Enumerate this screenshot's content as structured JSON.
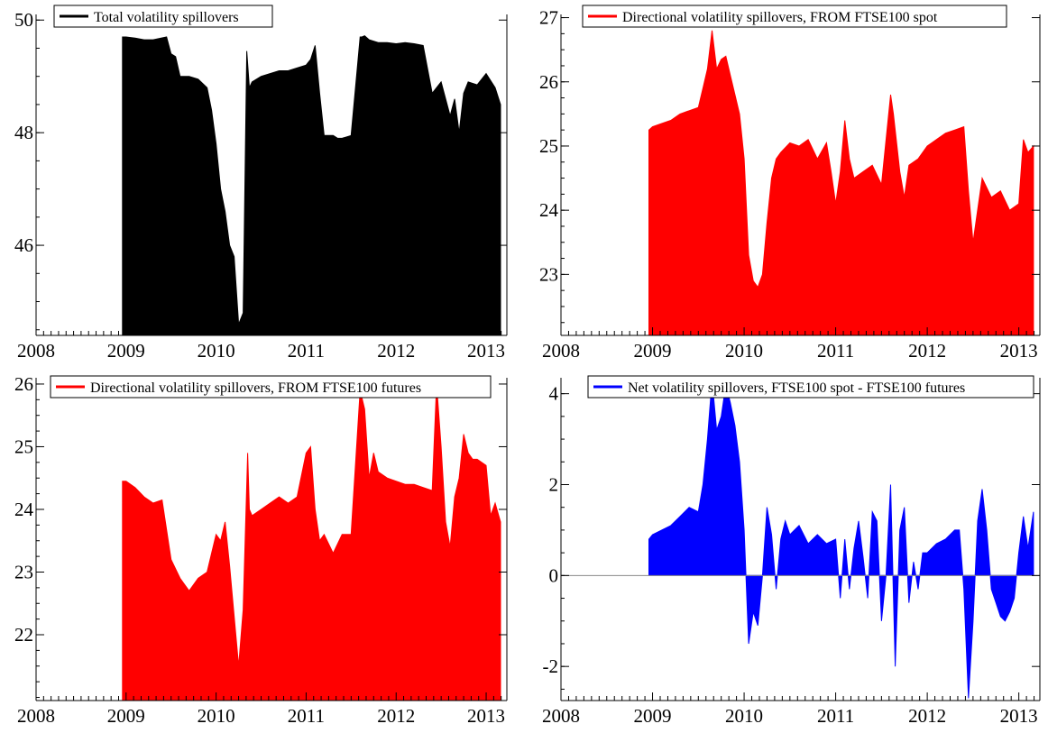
{
  "chart_data": [
    {
      "type": "area",
      "series": [
        {
          "name": "Total volatility spillovers",
          "color": "#000000",
          "x": [
            2008.96,
            2009.0,
            2009.1,
            2009.2,
            2009.3,
            2009.45,
            2009.5,
            2009.55,
            2009.6,
            2009.7,
            2009.8,
            2009.9,
            2009.95,
            2010.0,
            2010.05,
            2010.1,
            2010.15,
            2010.2,
            2010.25,
            2010.3,
            2010.34,
            2010.37,
            2010.4,
            2010.5,
            2010.6,
            2010.7,
            2010.8,
            2010.9,
            2011.0,
            2011.05,
            2011.1,
            2011.15,
            2011.2,
            2011.3,
            2011.35,
            2011.4,
            2011.5,
            2011.6,
            2011.62,
            2011.65,
            2011.7,
            2011.8,
            2011.9,
            2012.0,
            2012.1,
            2012.2,
            2012.3,
            2012.4,
            2012.5,
            2012.6,
            2012.65,
            2012.7,
            2012.75,
            2012.8,
            2012.9,
            2013.0,
            2013.1,
            2013.16
          ],
          "y": [
            49.7,
            49.7,
            49.68,
            49.65,
            49.65,
            49.7,
            49.4,
            49.35,
            49.0,
            49.0,
            48.95,
            48.8,
            48.4,
            47.8,
            47.0,
            46.6,
            46.0,
            45.8,
            44.6,
            44.8,
            49.45,
            48.8,
            48.9,
            49.0,
            49.05,
            49.1,
            49.1,
            49.15,
            49.2,
            49.3,
            49.55,
            48.7,
            47.95,
            47.95,
            47.9,
            47.9,
            47.95,
            49.7,
            49.7,
            49.72,
            49.65,
            49.6,
            49.6,
            49.58,
            49.6,
            49.58,
            49.55,
            48.7,
            48.9,
            48.3,
            48.6,
            48.0,
            48.7,
            48.9,
            48.85,
            49.05,
            48.8,
            48.5
          ]
        }
      ],
      "xlim": [
        2008.0,
        2013.23
      ],
      "ylim": [
        44.4,
        50.1
      ],
      "x_ticks": [
        2008,
        2009,
        2010,
        2011,
        2012,
        2013
      ],
      "x_tick_labels": [
        "2008",
        "2009",
        "2010",
        "2011",
        "2012",
        "2013"
      ],
      "y_ticks": [
        46,
        48,
        50
      ],
      "y_tick_labels": [
        "46",
        "48",
        "50"
      ],
      "baseline": 44.4,
      "legend": "top-left"
    },
    {
      "type": "area",
      "series": [
        {
          "name": "Directional volatility spillovers, FROM FTSE100 spot",
          "color": "#ff0000",
          "x": [
            2008.96,
            2009.0,
            2009.1,
            2009.2,
            2009.3,
            2009.4,
            2009.5,
            2009.55,
            2009.6,
            2009.65,
            2009.7,
            2009.75,
            2009.8,
            2009.85,
            2009.9,
            2009.95,
            2010.0,
            2010.05,
            2010.1,
            2010.15,
            2010.2,
            2010.25,
            2010.3,
            2010.35,
            2010.4,
            2010.5,
            2010.6,
            2010.7,
            2010.8,
            2010.9,
            2010.95,
            2011.0,
            2011.05,
            2011.1,
            2011.15,
            2011.2,
            2011.3,
            2011.4,
            2011.5,
            2011.6,
            2011.63,
            2011.7,
            2011.75,
            2011.8,
            2011.9,
            2012.0,
            2012.1,
            2012.2,
            2012.3,
            2012.4,
            2012.45,
            2012.5,
            2012.6,
            2012.7,
            2012.8,
            2012.9,
            2013.0,
            2013.05,
            2013.1,
            2013.16
          ],
          "y": [
            25.25,
            25.3,
            25.35,
            25.4,
            25.5,
            25.55,
            25.6,
            25.9,
            26.2,
            26.8,
            26.2,
            26.35,
            26.4,
            26.1,
            25.8,
            25.5,
            24.8,
            23.3,
            22.9,
            22.8,
            23.0,
            23.8,
            24.5,
            24.8,
            24.9,
            25.05,
            25.0,
            25.1,
            24.8,
            25.05,
            24.6,
            24.1,
            24.6,
            25.4,
            24.8,
            24.5,
            24.6,
            24.7,
            24.4,
            25.8,
            25.5,
            24.6,
            24.2,
            24.7,
            24.8,
            25.0,
            25.1,
            25.2,
            25.25,
            25.3,
            24.3,
            23.5,
            24.5,
            24.2,
            24.3,
            24.0,
            24.1,
            25.1,
            24.9,
            25.0
          ]
        }
      ],
      "xlim": [
        2008.0,
        2013.23
      ],
      "ylim": [
        22.05,
        27.05
      ],
      "x_ticks": [
        2008,
        2009,
        2010,
        2011,
        2012,
        2013
      ],
      "x_tick_labels": [
        "2008",
        "2009",
        "2010",
        "2011",
        "2012",
        "2013"
      ],
      "y_ticks": [
        23,
        24,
        25,
        26,
        27
      ],
      "y_tick_labels": [
        "23",
        "24",
        "25",
        "26",
        "27"
      ],
      "baseline": 22.05,
      "legend": "top-left"
    },
    {
      "type": "area",
      "series": [
        {
          "name": "Directional volatility spillovers, FROM FTSE100 futures",
          "color": "#ff0000",
          "x": [
            2008.96,
            2009.0,
            2009.1,
            2009.2,
            2009.3,
            2009.4,
            2009.5,
            2009.6,
            2009.65,
            2009.7,
            2009.8,
            2009.9,
            2009.95,
            2010.0,
            2010.05,
            2010.1,
            2010.15,
            2010.2,
            2010.25,
            2010.3,
            2010.35,
            2010.37,
            2010.4,
            2010.5,
            2010.6,
            2010.7,
            2010.8,
            2010.9,
            2011.0,
            2011.05,
            2011.1,
            2011.15,
            2011.2,
            2011.3,
            2011.4,
            2011.5,
            2011.6,
            2011.65,
            2011.7,
            2011.75,
            2011.8,
            2011.9,
            2012.0,
            2012.1,
            2012.2,
            2012.3,
            2012.4,
            2012.45,
            2012.5,
            2012.55,
            2012.6,
            2012.65,
            2012.7,
            2012.75,
            2012.8,
            2012.85,
            2012.9,
            2013.0,
            2013.05,
            2013.1,
            2013.16
          ],
          "y": [
            24.45,
            24.45,
            24.35,
            24.2,
            24.1,
            24.15,
            23.2,
            22.9,
            22.8,
            22.7,
            22.9,
            23.0,
            23.3,
            23.6,
            23.5,
            23.8,
            23.1,
            22.3,
            21.5,
            22.4,
            24.9,
            24.0,
            23.9,
            24.0,
            24.1,
            24.2,
            24.1,
            24.2,
            24.9,
            25.0,
            24.0,
            23.5,
            23.6,
            23.3,
            23.6,
            23.6,
            25.9,
            25.6,
            24.5,
            24.9,
            24.6,
            24.5,
            24.45,
            24.4,
            24.4,
            24.35,
            24.3,
            26.0,
            25.0,
            23.8,
            23.4,
            24.2,
            24.5,
            25.2,
            24.9,
            24.8,
            24.8,
            24.7,
            23.9,
            24.1,
            23.8
          ]
        }
      ],
      "xlim": [
        2008.0,
        2013.23
      ],
      "ylim": [
        20.95,
        26.1
      ],
      "x_ticks": [
        2008,
        2009,
        2010,
        2011,
        2012,
        2013
      ],
      "x_tick_labels": [
        "2008",
        "2009",
        "2010",
        "2011",
        "2012",
        "2013"
      ],
      "y_ticks": [
        22,
        23,
        24,
        25,
        26
      ],
      "y_tick_labels": [
        "22",
        "23",
        "24",
        "25",
        "26"
      ],
      "baseline": 20.95,
      "legend": "top-left"
    },
    {
      "type": "area",
      "series": [
        {
          "name": "Net volatility spillovers, FTSE100 spot - FTSE100 futures",
          "color": "#0000ff",
          "x": [
            2008.96,
            2009.0,
            2009.1,
            2009.2,
            2009.3,
            2009.4,
            2009.5,
            2009.55,
            2009.6,
            2009.65,
            2009.7,
            2009.75,
            2009.8,
            2009.85,
            2009.9,
            2009.95,
            2010.0,
            2010.05,
            2010.1,
            2010.15,
            2010.2,
            2010.25,
            2010.3,
            2010.35,
            2010.4,
            2010.45,
            2010.5,
            2010.6,
            2010.7,
            2010.8,
            2010.9,
            2011.0,
            2011.05,
            2011.1,
            2011.15,
            2011.2,
            2011.25,
            2011.3,
            2011.35,
            2011.4,
            2011.45,
            2011.5,
            2011.55,
            2011.6,
            2011.65,
            2011.7,
            2011.75,
            2011.8,
            2011.85,
            2011.9,
            2011.95,
            2012.0,
            2012.1,
            2012.2,
            2012.3,
            2012.35,
            2012.4,
            2012.45,
            2012.5,
            2012.55,
            2012.6,
            2012.65,
            2012.7,
            2012.75,
            2012.8,
            2012.85,
            2012.9,
            2012.95,
            2013.0,
            2013.05,
            2013.1,
            2013.16
          ],
          "y": [
            0.8,
            0.9,
            1.0,
            1.1,
            1.3,
            1.5,
            1.4,
            2.0,
            3.0,
            4.3,
            3.2,
            3.5,
            4.2,
            3.8,
            3.3,
            2.5,
            1.0,
            -1.5,
            -0.8,
            -1.1,
            0.0,
            1.5,
            0.9,
            -0.3,
            0.8,
            1.2,
            0.9,
            1.1,
            0.7,
            0.9,
            0.7,
            0.8,
            -0.5,
            0.8,
            -0.3,
            0.6,
            1.2,
            0.4,
            -0.5,
            1.4,
            1.2,
            -1.0,
            0.0,
            2.0,
            -2.0,
            1.0,
            1.5,
            -0.6,
            0.3,
            -0.3,
            0.5,
            0.5,
            0.7,
            0.8,
            1.0,
            1.0,
            -0.3,
            -2.7,
            -1.0,
            1.2,
            1.9,
            1.0,
            -0.3,
            -0.6,
            -0.9,
            -1.0,
            -0.8,
            -0.5,
            0.5,
            1.3,
            0.6,
            1.4
          ]
        }
      ],
      "xlim": [
        2008.0,
        2013.23
      ],
      "ylim": [
        -2.75,
        4.35
      ],
      "x_ticks": [
        2008,
        2009,
        2010,
        2011,
        2012,
        2013
      ],
      "x_tick_labels": [
        "2008",
        "2009",
        "2010",
        "2011",
        "2012",
        "2013"
      ],
      "y_ticks": [
        -2,
        0,
        2,
        4
      ],
      "y_tick_labels": [
        "-2",
        "0",
        "2",
        "4"
      ],
      "baseline": 0,
      "zero_line": true,
      "legend": "top-left"
    }
  ]
}
